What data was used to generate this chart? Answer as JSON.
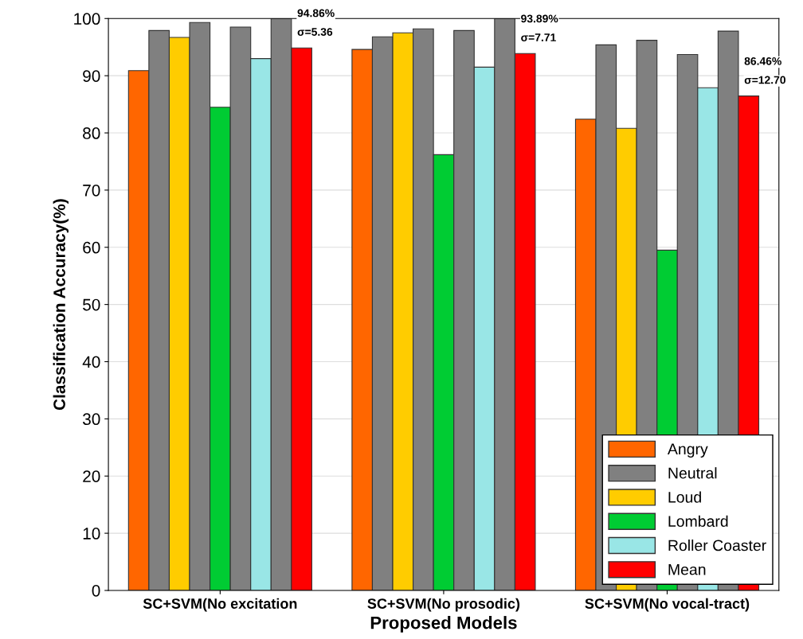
{
  "chart_data": {
    "type": "bar",
    "xlabel": "Proposed Models",
    "ylabel": "Classification Accuracy(%)",
    "categories": [
      "SC+SVM(No excitation",
      "SC+SVM(No prosodic)",
      "SC+SVM(No vocal-tract)"
    ],
    "series": [
      {
        "name": "Angry",
        "color": "#ff6600",
        "values": [
          90.9,
          94.6,
          82.4
        ]
      },
      {
        "name": "Neutral",
        "color": "#808080",
        "values": [
          97.9,
          96.8,
          95.4
        ]
      },
      {
        "name": "Loud",
        "color": "#ffcc00",
        "values": [
          96.7,
          97.5,
          80.8
        ]
      },
      {
        "color": "#808080",
        "values": [
          99.3,
          98.2,
          96.2
        ]
      },
      {
        "name": "Lombard",
        "color": "#00cc33",
        "values": [
          84.5,
          76.2,
          59.5
        ]
      },
      {
        "color": "#808080",
        "values": [
          98.5,
          97.9,
          93.7
        ]
      },
      {
        "name": "Roller Coaster",
        "color": "#99e6e6",
        "values": [
          93.0,
          91.5,
          87.9
        ]
      },
      {
        "color": "#808080",
        "values": [
          100,
          100,
          97.8
        ]
      },
      {
        "name": "Mean",
        "color": "#ff0000",
        "values": [
          94.86,
          93.89,
          86.46
        ]
      }
    ],
    "annotations": [
      "94.86%",
      "σ=5.36",
      "93.89%",
      "σ=7.71",
      "86.46%",
      "σ=12.70"
    ],
    "ylim": [
      0,
      100
    ],
    "yticks": [
      0,
      10,
      20,
      30,
      40,
      50,
      60,
      70,
      80,
      90,
      100
    ],
    "grid": "y",
    "legend": "bottom right"
  }
}
